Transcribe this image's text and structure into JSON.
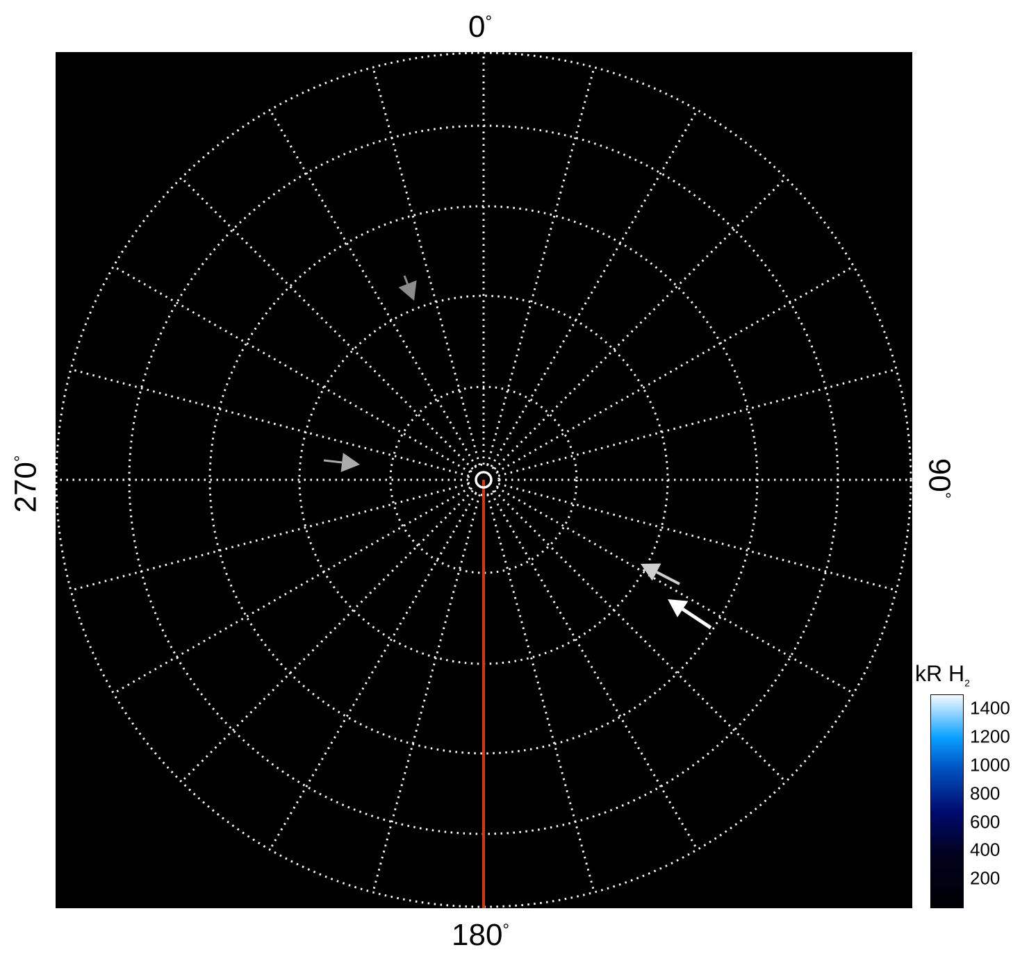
{
  "chart_data": {
    "type": "polar",
    "projection": "polar (pole at centre)",
    "angle_labels": {
      "top": "0",
      "right": "90",
      "bottom": "180",
      "left": "270"
    },
    "degree_symbol": "°",
    "meridian_spacing_deg": 15,
    "latitude_circles": 5,
    "grid": true,
    "grid_style": "dotted white",
    "background": "#000000",
    "marked_meridian": {
      "angle_deg": 180,
      "color": "#d23a12"
    },
    "colorbar": {
      "label": "kR H",
      "label_subscript": "2",
      "range": [
        0,
        1500
      ],
      "ticks": [
        1400,
        1200,
        1000,
        800,
        600,
        400,
        200
      ],
      "colormap": [
        "#000005",
        "#000a6e",
        "#0050c0",
        "#0aa0ff",
        "#f4fbff"
      ],
      "placement": "bottom-right"
    },
    "arrow_colors": [
      "#8c8c8c",
      "#ababab",
      "#cfcfcf",
      "#ffffff"
    ]
  }
}
